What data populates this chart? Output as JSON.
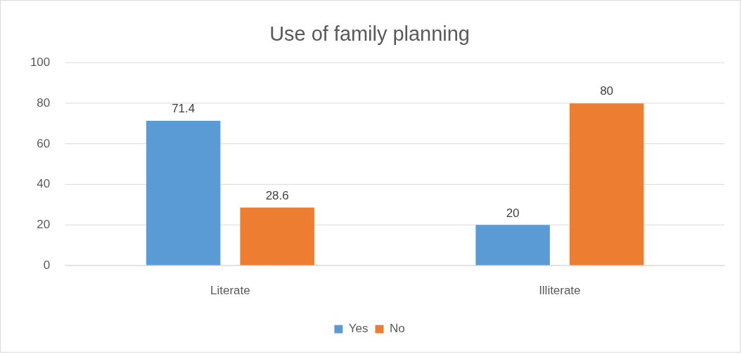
{
  "chart_data": {
    "type": "bar",
    "title": "Use of family planning",
    "categories": [
      "Literate",
      "Illiterate"
    ],
    "series": [
      {
        "name": "Yes",
        "color": "#5b9bd5",
        "values": [
          71.4,
          20
        ]
      },
      {
        "name": "No",
        "color": "#ed7d31",
        "values": [
          28.6,
          80
        ]
      }
    ],
    "ylim": [
      0,
      100
    ],
    "yticks": [
      0,
      20,
      40,
      60,
      80,
      100
    ],
    "grid": "y",
    "legend": "bottom",
    "data_labels": true
  }
}
